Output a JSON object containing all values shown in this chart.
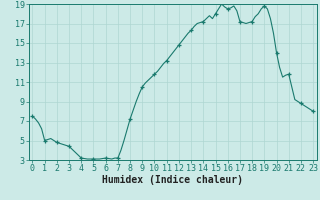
{
  "x": [
    0,
    0.25,
    0.5,
    0.75,
    1,
    1.25,
    1.5,
    1.75,
    2,
    2.25,
    2.5,
    2.75,
    3,
    3.25,
    3.5,
    3.75,
    4,
    4.25,
    4.5,
    4.75,
    5,
    5.25,
    5.5,
    5.75,
    6,
    6.25,
    6.5,
    6.75,
    7,
    7.25,
    7.5,
    7.75,
    8,
    8.25,
    8.5,
    8.75,
    9,
    9.25,
    9.5,
    9.75,
    10,
    10.25,
    10.5,
    10.75,
    11,
    11.25,
    11.5,
    11.75,
    12,
    12.25,
    12.5,
    12.75,
    13,
    13.25,
    13.5,
    13.75,
    14,
    14.25,
    14.5,
    14.75,
    15,
    15.25,
    15.5,
    15.75,
    16,
    16.25,
    16.5,
    16.75,
    17,
    17.25,
    17.5,
    17.75,
    18,
    18.25,
    18.5,
    18.75,
    19,
    19.25,
    19.5,
    19.75,
    20,
    20.25,
    20.5,
    20.75,
    21,
    21.25,
    21.5,
    21.75,
    22,
    22.25,
    22.5,
    22.75,
    23
  ],
  "y": [
    7.5,
    7.2,
    6.8,
    6.2,
    5.0,
    5.1,
    5.2,
    5.0,
    4.8,
    4.7,
    4.6,
    4.5,
    4.4,
    4.1,
    3.8,
    3.5,
    3.2,
    3.15,
    3.1,
    3.1,
    3.1,
    3.1,
    3.1,
    3.15,
    3.2,
    3.15,
    3.1,
    3.2,
    3.2,
    4.0,
    5.0,
    6.1,
    7.2,
    8.1,
    9.0,
    9.8,
    10.5,
    10.9,
    11.2,
    11.5,
    11.8,
    12.1,
    12.5,
    12.9,
    13.2,
    13.6,
    14.0,
    14.4,
    14.8,
    15.2,
    15.6,
    16.0,
    16.3,
    16.7,
    17.0,
    17.1,
    17.2,
    17.5,
    17.8,
    17.5,
    18.0,
    18.5,
    19.0,
    18.7,
    18.5,
    18.6,
    18.8,
    18.3,
    17.2,
    17.1,
    17.0,
    17.1,
    17.2,
    17.7,
    18.0,
    18.5,
    18.8,
    18.5,
    17.5,
    16.0,
    14.0,
    12.5,
    11.5,
    11.7,
    11.8,
    10.5,
    9.2,
    9.0,
    8.8,
    8.6,
    8.4,
    8.2,
    8.0
  ],
  "marker_x": [
    0,
    1,
    2,
    3,
    4,
    5,
    6,
    7,
    8,
    9,
    10,
    11,
    12,
    13,
    14,
    15,
    16,
    17,
    18,
    19,
    20,
    21,
    22,
    23
  ],
  "marker_y": [
    7.5,
    5.0,
    4.8,
    4.4,
    3.2,
    3.1,
    3.2,
    3.2,
    7.2,
    10.5,
    11.8,
    13.2,
    14.8,
    16.3,
    17.2,
    18.0,
    18.5,
    17.2,
    17.2,
    18.8,
    14.0,
    11.8,
    8.8,
    8.0
  ],
  "line_color": "#1a7a6e",
  "marker_color": "#1a7a6e",
  "bg_color": "#cceae7",
  "grid_color": "#afd6d2",
  "xlabel": "Humidex (Indice chaleur)",
  "xlim": [
    -0.3,
    23.3
  ],
  "ylim": [
    3,
    19
  ],
  "xticks": [
    0,
    1,
    2,
    3,
    4,
    5,
    6,
    7,
    8,
    9,
    10,
    11,
    12,
    13,
    14,
    15,
    16,
    17,
    18,
    19,
    20,
    21,
    22,
    23
  ],
  "yticks": [
    3,
    5,
    7,
    9,
    11,
    13,
    15,
    17,
    19
  ],
  "xlabel_fontsize": 7,
  "tick_fontsize": 6
}
